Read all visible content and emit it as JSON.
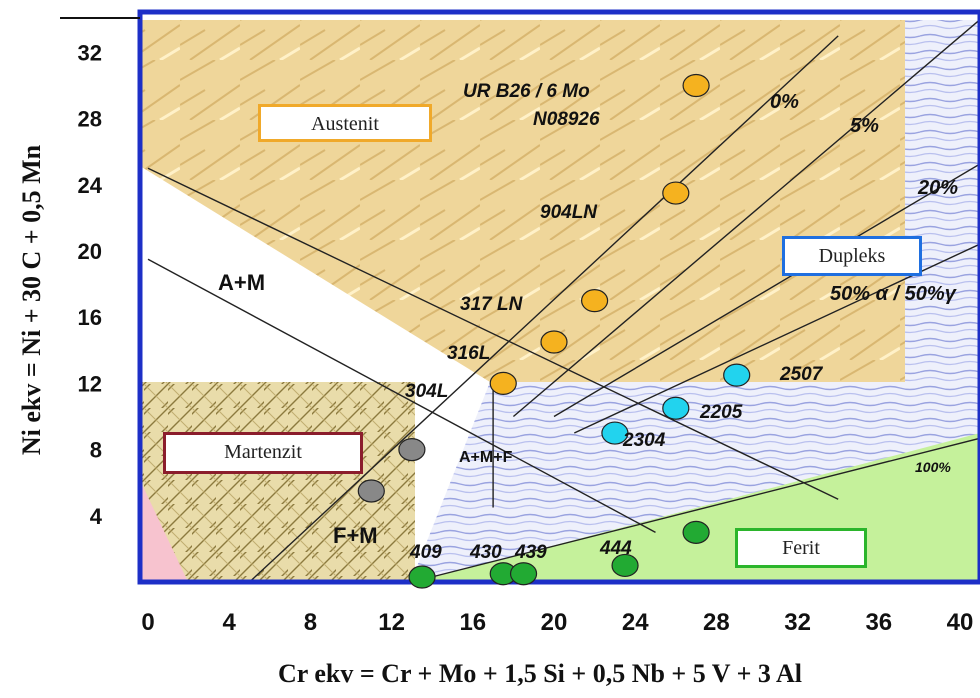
{
  "chart_data": {
    "type": "scatter",
    "title": "",
    "xlabel": "Cr ekv = Cr + Mo + 1,5 Si + 0,5 Nb + 5 V + 3 Al",
    "ylabel": "Ni ekv = Ni + 30 C + 0,5 Mn",
    "xlim": [
      0,
      42
    ],
    "ylim": [
      0,
      35
    ],
    "x_ticks": [
      "0",
      "4",
      "8",
      "12",
      "16",
      "20",
      "24",
      "28",
      "32",
      "36",
      "40"
    ],
    "y_ticks": [
      "4",
      "8",
      "12",
      "16",
      "20",
      "24",
      "28",
      "32"
    ],
    "grid": false,
    "region_labels": {
      "austenit": "Austenit",
      "martenzit": "Martenzit",
      "dupleks": "Dupleks",
      "ferit": "Ferit",
      "a_m": "A+M",
      "f_m": "F+M",
      "a_m_f": "A+M+F"
    },
    "ferrite_lines": [
      {
        "label": "0%",
        "from": [
          5,
          0
        ],
        "to": [
          34,
          33
        ]
      },
      {
        "label": "5%",
        "from": [
          18,
          10
        ],
        "to": [
          41,
          34
        ]
      },
      {
        "label": "20%",
        "from": [
          20,
          10
        ],
        "to": [
          42,
          26
        ]
      },
      {
        "label": "50% α / 50%γ",
        "from": [
          21,
          9
        ],
        "to": [
          42,
          21
        ]
      },
      {
        "label": "100%",
        "from": [
          13,
          0
        ],
        "to": [
          42,
          9
        ]
      }
    ],
    "boundary_lines": [
      {
        "from": [
          0,
          25
        ],
        "to": [
          34,
          5
        ]
      },
      {
        "from": [
          0,
          19.5
        ],
        "to": [
          25,
          3
        ]
      },
      {
        "from": [
          17,
          12
        ],
        "to": [
          17,
          4.5
        ]
      }
    ],
    "series": [
      {
        "color": "#f5b21f",
        "points": [
          {
            "x": 27,
            "y": 30,
            "label": "UR B26 / 6 Mo\nN08926"
          },
          {
            "x": 26,
            "y": 23.5,
            "label": "904LN"
          },
          {
            "x": 22,
            "y": 17,
            "label": "317 LN"
          },
          {
            "x": 20,
            "y": 14.5,
            "label": "316L"
          },
          {
            "x": 17.5,
            "y": 12,
            "label": "304L"
          }
        ]
      },
      {
        "color": "#22d3ee",
        "points": [
          {
            "x": 29,
            "y": 12.5,
            "label": "2507"
          },
          {
            "x": 26,
            "y": 10.5,
            "label": "2205"
          },
          {
            "x": 23,
            "y": 9,
            "label": "2304"
          }
        ]
      },
      {
        "color": "#22aa33",
        "points": [
          {
            "x": 13.5,
            "y": 0.3,
            "label": "409"
          },
          {
            "x": 17.5,
            "y": 0.5,
            "label": "430"
          },
          {
            "x": 18.5,
            "y": 0.5,
            "label": "439"
          },
          {
            "x": 23.5,
            "y": 1,
            "label": "444"
          },
          {
            "x": 27,
            "y": 3,
            "label": ""
          }
        ]
      },
      {
        "color": "#888888",
        "points": [
          {
            "x": 13,
            "y": 8,
            "label": ""
          },
          {
            "x": 11,
            "y": 5.5,
            "label": ""
          }
        ]
      }
    ]
  }
}
